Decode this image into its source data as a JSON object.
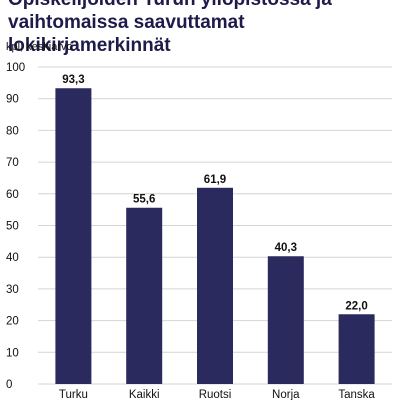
{
  "chart_data": {
    "type": "bar",
    "title": "Opiskelijoiden Turun yliopistossa ja vaihtomaissa saavuttamat lokikirjamerkinnät",
    "ylabel": "kpl, keskiarvo",
    "categories": [
      "Turku",
      "Kaikki",
      "Ruotsi",
      "Norja",
      "Tanska"
    ],
    "values": [
      93.3,
      55.6,
      61.9,
      40.3,
      22.0
    ],
    "value_labels": [
      "93,3",
      "55,6",
      "61,9",
      "40,3",
      "22,0"
    ],
    "yticks": [
      "0",
      "10",
      "20",
      "30",
      "40",
      "50",
      "60",
      "70",
      "80",
      "90",
      "100"
    ],
    "ylim": [
      0,
      100
    ],
    "grid": true,
    "legend": "none",
    "bar_color": "#2b2a5e",
    "grid_color": "#d4d4d4"
  }
}
